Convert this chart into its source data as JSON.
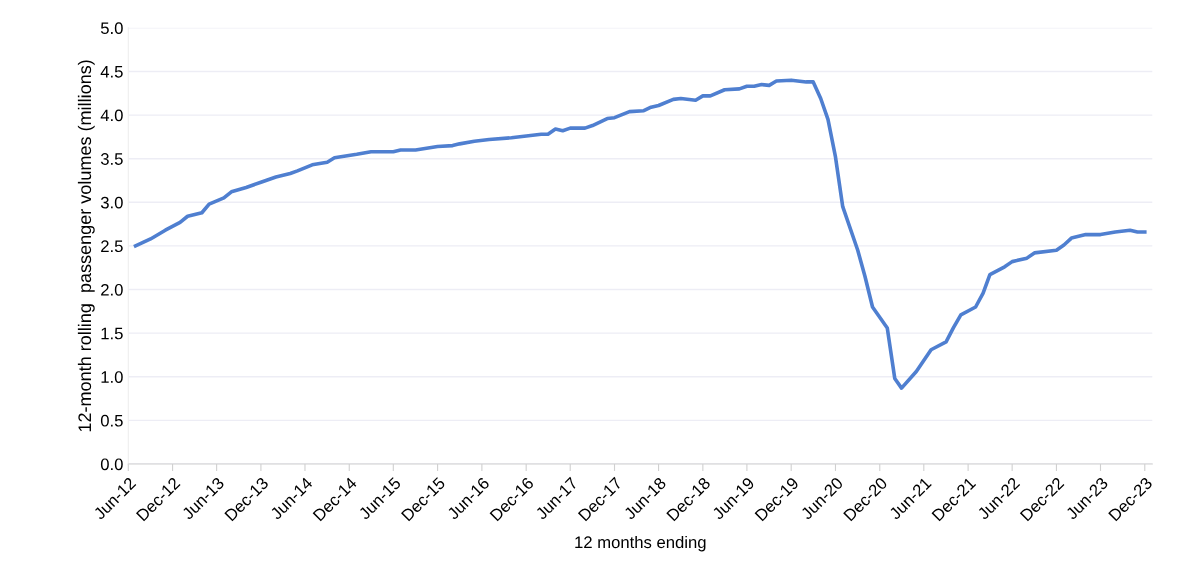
{
  "chart_data": {
    "type": "line",
    "xlabel": "12 months ending",
    "ylabel": "12-month rolling  passenger volumes (millions)",
    "x": [
      "2012-07",
      "2012-09",
      "2012-11",
      "2013-01",
      "2013-02",
      "2013-04",
      "2013-05",
      "2013-07",
      "2013-08",
      "2013-10",
      "2013-12",
      "2014-02",
      "2014-04",
      "2014-05",
      "2014-07",
      "2014-09",
      "2014-10",
      "2015-01",
      "2015-03",
      "2015-06",
      "2015-07",
      "2015-09",
      "2015-12",
      "2016-02",
      "2016-03",
      "2016-05",
      "2016-07",
      "2016-10",
      "2017-02",
      "2017-03",
      "2017-04",
      "2017-05",
      "2017-06",
      "2017-08",
      "2017-09",
      "2017-11",
      "2017-12",
      "2018-02",
      "2018-04",
      "2018-05",
      "2018-06",
      "2018-08",
      "2018-09",
      "2018-11",
      "2018-12",
      "2019-01",
      "2019-03",
      "2019-05",
      "2019-06",
      "2019-07",
      "2019-08",
      "2019-09",
      "2019-10",
      "2019-12",
      "2020-02",
      "2020-03",
      "2020-04",
      "2020-05",
      "2020-06",
      "2020-07",
      "2020-09",
      "2020-10",
      "2020-11",
      "2021-01",
      "2021-02",
      "2021-03",
      "2021-05",
      "2021-07",
      "2021-09",
      "2021-10",
      "2021-11",
      "2022-01",
      "2022-02",
      "2022-03",
      "2022-05",
      "2022-06",
      "2022-08",
      "2022-09",
      "2022-12",
      "2023-01",
      "2023-02",
      "2023-04",
      "2023-06",
      "2023-08",
      "2023-10",
      "2023-11",
      "2023-12"
    ],
    "series": [
      {
        "color": "#4f7fd0",
        "values": [
          2.5,
          2.58,
          2.68,
          2.77,
          2.84,
          2.88,
          2.98,
          3.05,
          3.12,
          3.17,
          3.23,
          3.29,
          3.33,
          3.36,
          3.43,
          3.46,
          3.51,
          3.55,
          3.58,
          3.58,
          3.6,
          3.6,
          3.64,
          3.65,
          3.67,
          3.7,
          3.72,
          3.74,
          3.78,
          3.78,
          3.84,
          3.82,
          3.85,
          3.85,
          3.88,
          3.96,
          3.97,
          4.04,
          4.05,
          4.09,
          4.11,
          4.18,
          4.19,
          4.17,
          4.22,
          4.22,
          4.29,
          4.3,
          4.33,
          4.33,
          4.35,
          4.34,
          4.39,
          4.4,
          4.38,
          4.38,
          4.19,
          3.95,
          3.52,
          2.95,
          2.45,
          2.15,
          1.8,
          1.56,
          0.98,
          0.87,
          1.06,
          1.31,
          1.4,
          1.56,
          1.71,
          1.8,
          1.96,
          2.17,
          2.26,
          2.32,
          2.36,
          2.42,
          2.45,
          2.51,
          2.59,
          2.63,
          2.63,
          2.66,
          2.68,
          2.66,
          2.66
        ]
      }
    ],
    "xlim": [
      "2012-06",
      "2024-01"
    ],
    "xticks": [
      {
        "value": "2012-06",
        "label": "Jun-12"
      },
      {
        "value": "2012-12",
        "label": "Dec-12"
      },
      {
        "value": "2013-06",
        "label": "Jun-13"
      },
      {
        "value": "2013-12",
        "label": "Dec-13"
      },
      {
        "value": "2014-06",
        "label": "Jun-14"
      },
      {
        "value": "2014-12",
        "label": "Dec-14"
      },
      {
        "value": "2015-06",
        "label": "Jun-15"
      },
      {
        "value": "2015-12",
        "label": "Dec-15"
      },
      {
        "value": "2016-06",
        "label": "Jun-16"
      },
      {
        "value": "2016-12",
        "label": "Dec-16"
      },
      {
        "value": "2017-06",
        "label": "Jun-17"
      },
      {
        "value": "2017-12",
        "label": "Dec-17"
      },
      {
        "value": "2018-06",
        "label": "Jun-18"
      },
      {
        "value": "2018-12",
        "label": "Dec-18"
      },
      {
        "value": "2019-06",
        "label": "Jun-19"
      },
      {
        "value": "2019-12",
        "label": "Dec-19"
      },
      {
        "value": "2020-06",
        "label": "Jun-20"
      },
      {
        "value": "2020-12",
        "label": "Dec-20"
      },
      {
        "value": "2021-06",
        "label": "Jun-21"
      },
      {
        "value": "2021-12",
        "label": "Dec-21"
      },
      {
        "value": "2022-06",
        "label": "Jun-22"
      },
      {
        "value": "2022-12",
        "label": "Dec-22"
      },
      {
        "value": "2023-06",
        "label": "Jun-23"
      },
      {
        "value": "2023-12",
        "label": "Dec-23"
      }
    ],
    "ylim": [
      0,
      5
    ],
    "yticks": [
      {
        "value": 0,
        "label": "0.0"
      },
      {
        "value": 0.5,
        "label": "0.5"
      },
      {
        "value": 1,
        "label": "1.0"
      },
      {
        "value": 1.5,
        "label": "1.5"
      },
      {
        "value": 2,
        "label": "2.0"
      },
      {
        "value": 2.5,
        "label": "2.5"
      },
      {
        "value": 3,
        "label": "3.0"
      },
      {
        "value": 3.5,
        "label": "3.5"
      },
      {
        "value": 4,
        "label": "4.0"
      },
      {
        "value": 4.5,
        "label": "4.5"
      },
      {
        "value": 5,
        "label": "5.0"
      }
    ],
    "grid": "y"
  }
}
